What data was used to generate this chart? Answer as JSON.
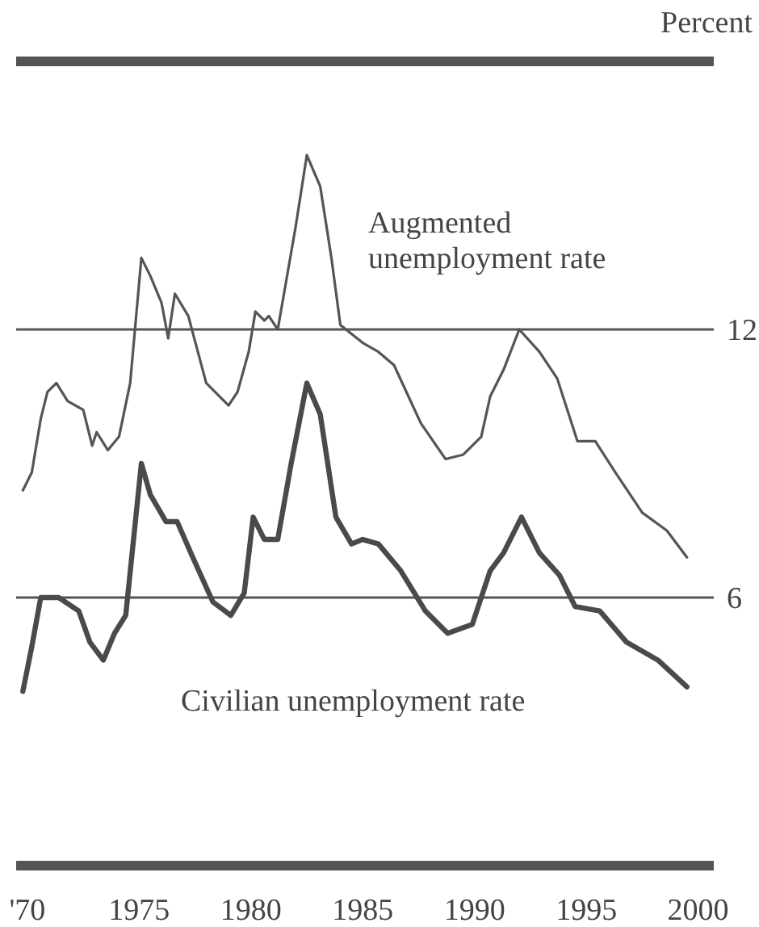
{
  "chart_data": {
    "type": "line",
    "ylabel": "Percent",
    "xlim": [
      1969.5,
      2000.7
    ],
    "ylim": [
      0,
      18
    ],
    "yticks": [
      6,
      12
    ],
    "xticks": [
      {
        "value": 1970,
        "label": "'70"
      },
      1975,
      1980,
      1985,
      1990,
      1995,
      2000
    ],
    "grid": "y",
    "marker": "none",
    "line_style": "solid",
    "series": [
      {
        "name": "Augmented unemployment rate",
        "color": "#555555",
        "x": [
          1969.8,
          1970.2,
          1970.6,
          1970.9,
          1971.3,
          1971.8,
          1972.5,
          1972.9,
          1973.1,
          1973.6,
          1974.1,
          1974.6,
          1975.1,
          1975.5,
          1976.0,
          1976.3,
          1976.6,
          1977.2,
          1978.0,
          1979.0,
          1979.4,
          1979.9,
          1980.2,
          1980.6,
          1980.8,
          1981.2,
          1982.0,
          1982.5,
          1983.1,
          1983.6,
          1984.0,
          1985.0,
          1985.7,
          1986.4,
          1987.6,
          1988.7,
          1989.5,
          1990.3,
          1990.7,
          1991.3,
          1992.0,
          1992.9,
          1993.7,
          1994.6,
          1995.4,
          1996.3,
          1997.5,
          1998.6,
          1999.5
        ],
        "values": [
          8.4,
          8.8,
          10.0,
          10.6,
          10.8,
          10.4,
          10.2,
          9.4,
          9.7,
          9.3,
          9.6,
          10.8,
          13.6,
          13.2,
          12.6,
          11.8,
          12.8,
          12.3,
          10.8,
          10.3,
          10.6,
          11.5,
          12.4,
          12.2,
          12.3,
          12.0,
          14.3,
          15.9,
          15.2,
          13.6,
          12.1,
          11.7,
          11.5,
          11.2,
          9.9,
          9.1,
          9.2,
          9.6,
          10.5,
          11.1,
          12.0,
          11.5,
          10.9,
          9.5,
          9.5,
          8.8,
          7.9,
          7.5,
          6.9
        ]
      },
      {
        "name": "Civilian unemployment rate",
        "color": "#4a4a4a",
        "x": [
          1969.8,
          1970.2,
          1970.6,
          1971.4,
          1972.3,
          1972.8,
          1973.4,
          1973.9,
          1974.4,
          1975.1,
          1975.5,
          1976.2,
          1976.7,
          1977.4,
          1978.3,
          1979.1,
          1979.7,
          1980.1,
          1980.6,
          1981.2,
          1981.8,
          1982.5,
          1983.1,
          1983.8,
          1984.5,
          1985.0,
          1985.7,
          1986.7,
          1987.8,
          1988.8,
          1989.9,
          1990.7,
          1991.3,
          1992.1,
          1992.9,
          1993.8,
          1994.5,
          1995.6,
          1996.8,
          1998.2,
          1999.5
        ],
        "values": [
          3.9,
          4.9,
          6.0,
          6.0,
          5.7,
          5.0,
          4.6,
          5.2,
          5.6,
          9.0,
          8.3,
          7.7,
          7.7,
          6.9,
          5.9,
          5.6,
          6.1,
          7.8,
          7.3,
          7.3,
          9.0,
          10.8,
          10.1,
          7.8,
          7.2,
          7.3,
          7.2,
          6.6,
          5.7,
          5.2,
          5.4,
          6.6,
          7.0,
          7.8,
          7.0,
          6.5,
          5.8,
          5.7,
          5.0,
          4.6,
          4.0
        ]
      }
    ]
  }
}
